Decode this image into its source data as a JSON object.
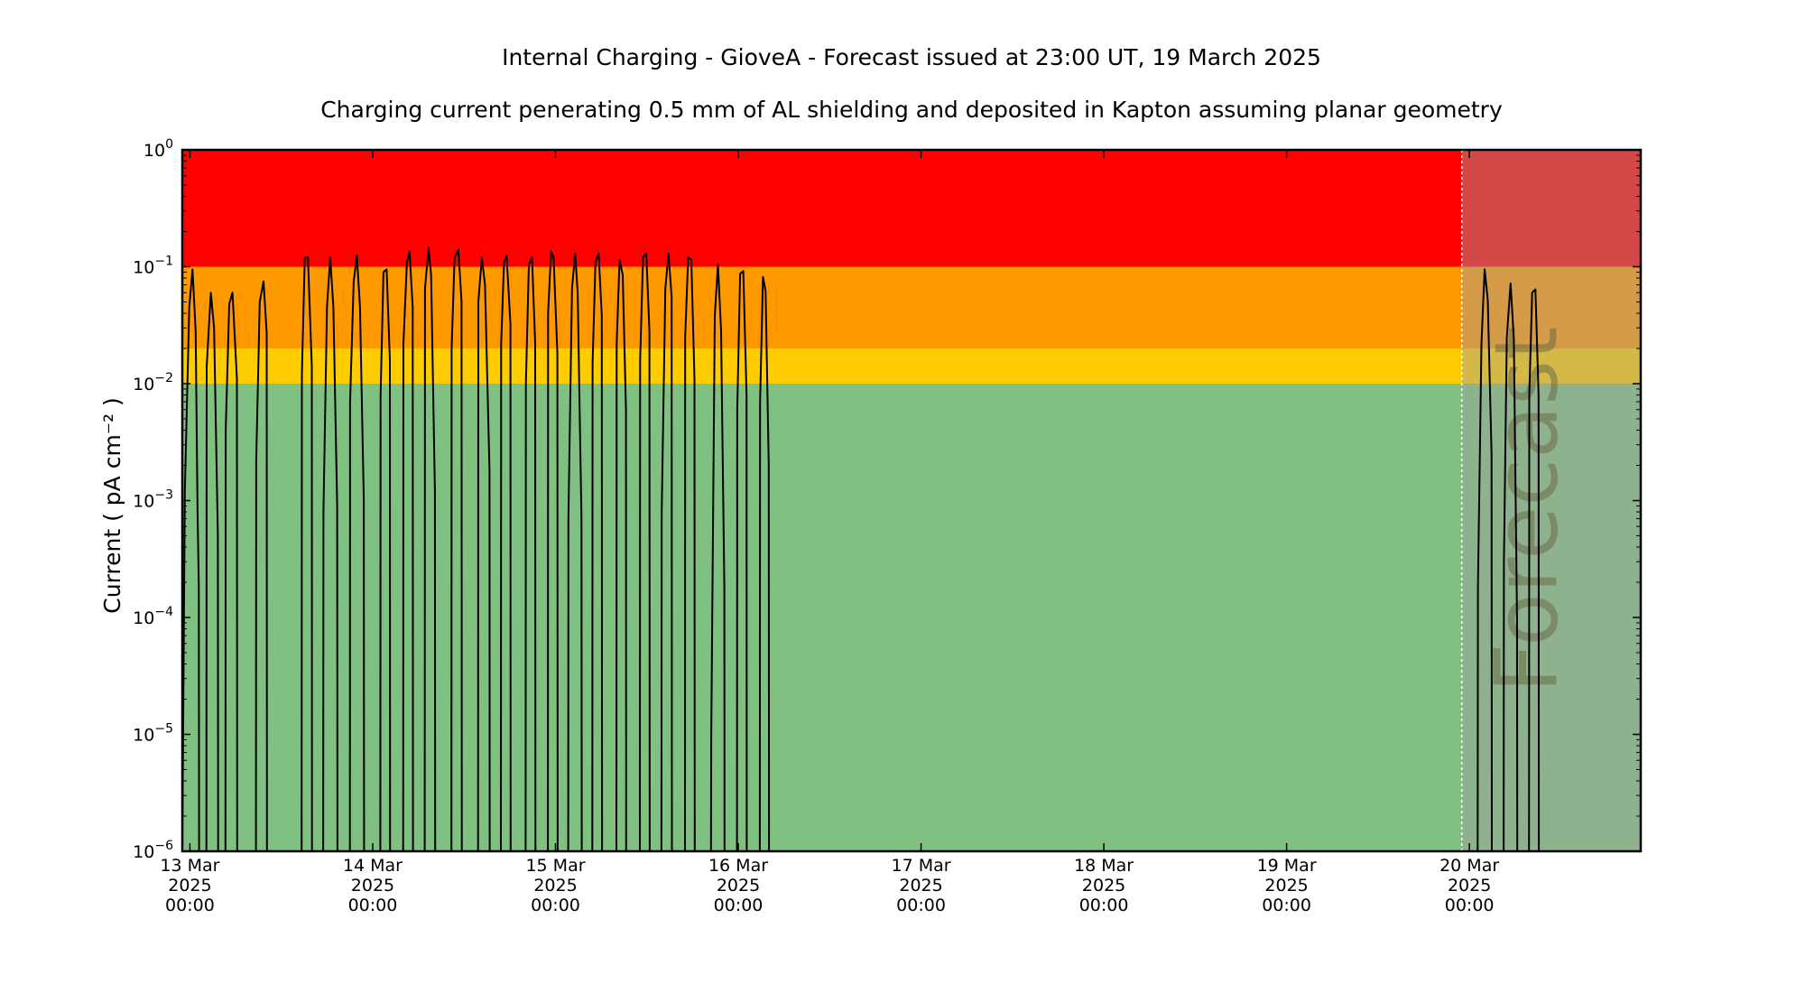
{
  "chart_data": {
    "type": "line",
    "title": "Internal Charging - GioveA - Forecast issued at 23:00 UT, 19 March 2025",
    "subtitle": "Charging current penerating 0.5 mm of AL shielding and deposited in Kapton assuming planar geometry",
    "xlabel": "",
    "ylabel": "Current ( pA cm⁻² )",
    "yscale": "log",
    "ylim": [
      1e-06,
      1
    ],
    "xlim": [
      "2025-03-12T23:00",
      "2025-03-20T22:30"
    ],
    "grid": false,
    "legend": "none",
    "x_ticks": [
      {
        "value": "2025-03-13T00:00",
        "lines": [
          "13 Mar",
          "2025",
          "00:00"
        ]
      },
      {
        "value": "2025-03-14T00:00",
        "lines": [
          "14 Mar",
          "2025",
          "00:00"
        ]
      },
      {
        "value": "2025-03-15T00:00",
        "lines": [
          "15 Mar",
          "2025",
          "00:00"
        ]
      },
      {
        "value": "2025-03-16T00:00",
        "lines": [
          "16 Mar",
          "2025",
          "00:00"
        ]
      },
      {
        "value": "2025-03-17T00:00",
        "lines": [
          "17 Mar",
          "2025",
          "00:00"
        ]
      },
      {
        "value": "2025-03-18T00:00",
        "lines": [
          "18 Mar",
          "2025",
          "00:00"
        ]
      },
      {
        "value": "2025-03-19T00:00",
        "lines": [
          "19 Mar",
          "2025",
          "00:00"
        ]
      },
      {
        "value": "2025-03-20T00:00",
        "lines": [
          "20 Mar",
          "2025",
          "00:00"
        ]
      }
    ],
    "y_ticks": [
      {
        "value": 1e-06,
        "base": "10",
        "exp": "−6"
      },
      {
        "value": 1e-05,
        "base": "10",
        "exp": "−5"
      },
      {
        "value": 0.0001,
        "base": "10",
        "exp": "−4"
      },
      {
        "value": 0.001,
        "base": "10",
        "exp": "−3"
      },
      {
        "value": 0.01,
        "base": "10",
        "exp": "−2"
      },
      {
        "value": 0.1,
        "base": "10",
        "exp": "−1"
      },
      {
        "value": 1,
        "base": "10",
        "exp": "0"
      }
    ],
    "bands": [
      {
        "from": 1e-06,
        "to": 0.01,
        "color": "#80c080"
      },
      {
        "from": 0.01,
        "to": 0.02,
        "color": "#ffcc00"
      },
      {
        "from": 0.02,
        "to": 0.1,
        "color": "#ff9900"
      },
      {
        "from": 0.1,
        "to": 1,
        "color": "#ff0000"
      }
    ],
    "forecast": {
      "start": "2025-03-19T23:00",
      "label": "Forecast",
      "overlay_color": "#a0a0a0",
      "overlay_opacity": 0.45,
      "divider_color": "#ffffff"
    },
    "line_color": "#000000",
    "series": [
      {
        "points": [
          [
            "2025-03-12T23:00",
            1e-06
          ],
          [
            "2025-03-12T23:20",
            0.0012
          ],
          [
            "2025-03-12T23:55",
            0.045
          ],
          [
            "2025-03-13T00:20",
            0.095
          ],
          [
            "2025-03-13T00:45",
            0.028
          ],
          [
            "2025-03-13T01:00",
            0.0008
          ],
          [
            "2025-03-13T01:10",
            0.00018
          ],
          [
            "2025-03-13T01:12",
            1e-06
          ],
          [
            "2025-03-13T02:10",
            1e-06
          ],
          [
            "2025-03-13T02:12",
            0.014
          ],
          [
            "2025-03-13T02:45",
            0.06
          ],
          [
            "2025-03-13T03:10",
            0.03
          ],
          [
            "2025-03-13T03:40",
            0.0005
          ],
          [
            "2025-03-13T03:42",
            1e-06
          ],
          [
            "2025-03-13T04:40",
            1e-06
          ],
          [
            "2025-03-13T04:42",
            0.004
          ],
          [
            "2025-03-13T05:10",
            0.048
          ],
          [
            "2025-03-13T05:35",
            0.06
          ],
          [
            "2025-03-13T06:10",
            0.011
          ],
          [
            "2025-03-13T06:12",
            1e-06
          ],
          [
            "2025-03-13T08:40",
            1e-06
          ],
          [
            "2025-03-13T08:42",
            0.0022
          ],
          [
            "2025-03-13T09:10",
            0.05
          ],
          [
            "2025-03-13T09:40",
            0.075
          ],
          [
            "2025-03-13T10:05",
            0.027
          ],
          [
            "2025-03-13T10:07",
            1e-06
          ],
          [
            "2025-03-13T14:40",
            1e-06
          ],
          [
            "2025-03-13T14:42",
            0.012
          ],
          [
            "2025-03-13T15:05",
            0.12
          ],
          [
            "2025-03-13T15:30",
            0.12
          ],
          [
            "2025-03-13T16:00",
            0.014
          ],
          [
            "2025-03-13T16:02",
            1e-06
          ],
          [
            "2025-03-13T17:30",
            1e-06
          ],
          [
            "2025-03-13T17:32",
            0.0008
          ],
          [
            "2025-03-13T18:00",
            0.045
          ],
          [
            "2025-03-13T18:25",
            0.12
          ],
          [
            "2025-03-13T18:50",
            0.045
          ],
          [
            "2025-03-13T19:20",
            0.0009
          ],
          [
            "2025-03-13T19:22",
            1e-06
          ],
          [
            "2025-03-13T21:00",
            1e-06
          ],
          [
            "2025-03-13T21:02",
            0.007
          ],
          [
            "2025-03-13T21:30",
            0.075
          ],
          [
            "2025-03-13T21:55",
            0.125
          ],
          [
            "2025-03-13T22:20",
            0.045
          ],
          [
            "2025-03-13T22:50",
            0.001
          ],
          [
            "2025-03-13T22:52",
            1e-06
          ],
          [
            "2025-03-14T01:00",
            1e-06
          ],
          [
            "2025-03-14T01:02",
            0.008
          ],
          [
            "2025-03-14T01:25",
            0.09
          ],
          [
            "2025-03-14T01:50",
            0.095
          ],
          [
            "2025-03-14T02:15",
            0.016
          ],
          [
            "2025-03-14T02:17",
            1e-06
          ],
          [
            "2025-03-14T04:00",
            1e-06
          ],
          [
            "2025-03-14T04:02",
            0.022
          ],
          [
            "2025-03-14T04:30",
            0.11
          ],
          [
            "2025-03-14T04:50",
            0.135
          ],
          [
            "2025-03-14T05:15",
            0.045
          ],
          [
            "2025-03-14T05:17",
            1e-06
          ],
          [
            "2025-03-14T06:50",
            1e-06
          ],
          [
            "2025-03-14T06:52",
            0.065
          ],
          [
            "2025-03-14T07:20",
            0.145
          ],
          [
            "2025-03-14T07:40",
            0.085
          ],
          [
            "2025-03-14T08:10",
            0.0012
          ],
          [
            "2025-03-14T08:12",
            1e-06
          ],
          [
            "2025-03-14T10:20",
            1e-06
          ],
          [
            "2025-03-14T10:22",
            0.02
          ],
          [
            "2025-03-14T10:45",
            0.12
          ],
          [
            "2025-03-14T11:15",
            0.14
          ],
          [
            "2025-03-14T11:40",
            0.05
          ],
          [
            "2025-03-14T11:42",
            1e-06
          ],
          [
            "2025-03-14T13:50",
            1e-06
          ],
          [
            "2025-03-14T13:52",
            0.05
          ],
          [
            "2025-03-14T14:20",
            0.12
          ],
          [
            "2025-03-14T14:45",
            0.07
          ],
          [
            "2025-03-14T15:20",
            0.0018
          ],
          [
            "2025-03-14T15:22",
            1e-06
          ],
          [
            "2025-03-14T16:50",
            1e-06
          ],
          [
            "2025-03-14T16:52",
            0.022
          ],
          [
            "2025-03-14T17:15",
            0.11
          ],
          [
            "2025-03-14T17:35",
            0.125
          ],
          [
            "2025-03-14T18:05",
            0.032
          ],
          [
            "2025-03-14T18:07",
            1e-06
          ],
          [
            "2025-03-14T20:05",
            1e-06
          ],
          [
            "2025-03-14T20:07",
            0.01
          ],
          [
            "2025-03-14T20:30",
            0.105
          ],
          [
            "2025-03-14T20:55",
            0.12
          ],
          [
            "2025-03-14T21:20",
            0.022
          ],
          [
            "2025-03-14T21:22",
            1e-06
          ],
          [
            "2025-03-14T23:00",
            1e-06
          ],
          [
            "2025-03-14T23:02",
            0.04
          ],
          [
            "2025-03-14T23:25",
            0.135
          ],
          [
            "2025-03-14T23:45",
            0.12
          ],
          [
            "2025-03-15T00:15",
            0.018
          ],
          [
            "2025-03-15T00:17",
            1e-06
          ],
          [
            "2025-03-15T01:40",
            1e-06
          ],
          [
            "2025-03-15T01:42",
            0.0007
          ],
          [
            "2025-03-15T02:10",
            0.065
          ],
          [
            "2025-03-15T02:35",
            0.13
          ],
          [
            "2025-03-15T02:55",
            0.06
          ],
          [
            "2025-03-15T03:25",
            0.0007
          ],
          [
            "2025-03-15T03:27",
            1e-06
          ],
          [
            "2025-03-15T04:50",
            1e-06
          ],
          [
            "2025-03-15T04:52",
            0.015
          ],
          [
            "2025-03-15T05:15",
            0.11
          ],
          [
            "2025-03-15T05:40",
            0.13
          ],
          [
            "2025-03-15T06:05",
            0.038
          ],
          [
            "2025-03-15T06:07",
            1e-06
          ],
          [
            "2025-03-15T08:00",
            1e-06
          ],
          [
            "2025-03-15T08:02",
            0.022
          ],
          [
            "2025-03-15T08:25",
            0.115
          ],
          [
            "2025-03-15T08:50",
            0.085
          ],
          [
            "2025-03-15T09:15",
            0.006
          ],
          [
            "2025-03-15T09:17",
            1e-06
          ],
          [
            "2025-03-15T11:05",
            1e-06
          ],
          [
            "2025-03-15T11:07",
            0.016
          ],
          [
            "2025-03-15T11:30",
            0.12
          ],
          [
            "2025-03-15T11:55",
            0.13
          ],
          [
            "2025-03-15T12:20",
            0.028
          ],
          [
            "2025-03-15T12:22",
            1e-06
          ],
          [
            "2025-03-15T13:55",
            1e-06
          ],
          [
            "2025-03-15T13:57",
            0.0008
          ],
          [
            "2025-03-15T14:25",
            0.065
          ],
          [
            "2025-03-15T14:50",
            0.13
          ],
          [
            "2025-03-15T15:15",
            0.055
          ],
          [
            "2025-03-15T15:17",
            1e-06
          ],
          [
            "2025-03-15T17:00",
            1e-06
          ],
          [
            "2025-03-15T17:02",
            0.025
          ],
          [
            "2025-03-15T17:25",
            0.12
          ],
          [
            "2025-03-15T17:50",
            0.115
          ],
          [
            "2025-03-15T18:15",
            0.011
          ],
          [
            "2025-03-15T18:17",
            1e-06
          ],
          [
            "2025-03-15T20:25",
            1e-06
          ],
          [
            "2025-03-15T20:27",
            1e-05
          ],
          [
            "2025-03-15T20:55",
            0.038
          ],
          [
            "2025-03-15T21:20",
            0.105
          ],
          [
            "2025-03-15T21:45",
            0.028
          ],
          [
            "2025-03-15T22:10",
            0.00018
          ],
          [
            "2025-03-15T22:12",
            1e-06
          ],
          [
            "2025-03-15T23:50",
            1e-06
          ],
          [
            "2025-03-15T23:52",
            0.006
          ],
          [
            "2025-03-16T00:15",
            0.087
          ],
          [
            "2025-03-16T00:40",
            0.092
          ],
          [
            "2025-03-16T01:05",
            0.008
          ],
          [
            "2025-03-16T01:07",
            1e-06
          ],
          [
            "2025-03-16T02:50",
            1e-06
          ],
          [
            "2025-03-16T02:52",
            0.007
          ],
          [
            "2025-03-16T03:15",
            0.082
          ],
          [
            "2025-03-16T03:35",
            0.062
          ],
          [
            "2025-03-16T04:00",
            0.002
          ],
          [
            "2025-03-16T04:02",
            1e-06
          ]
        ]
      },
      {
        "name": "",
        "forecast": true,
        "points": [
          [
            "2025-03-20T01:05",
            1e-06
          ],
          [
            "2025-03-20T01:07",
            0.00018
          ],
          [
            "2025-03-20T01:35",
            0.022
          ],
          [
            "2025-03-20T02:00",
            0.095
          ],
          [
            "2025-03-20T02:25",
            0.052
          ],
          [
            "2025-03-20T02:55",
            0.0025
          ],
          [
            "2025-03-20T02:57",
            1e-06
          ],
          [
            "2025-03-20T04:30",
            1e-06
          ],
          [
            "2025-03-20T04:32",
            0.0003
          ],
          [
            "2025-03-20T04:55",
            0.025
          ],
          [
            "2025-03-20T05:25",
            0.072
          ],
          [
            "2025-03-20T05:50",
            0.024
          ],
          [
            "2025-03-20T06:15",
            0.0001
          ],
          [
            "2025-03-20T06:17",
            1e-06
          ],
          [
            "2025-03-20T07:50",
            1e-06
          ],
          [
            "2025-03-20T07:52",
            0.008
          ],
          [
            "2025-03-20T08:15",
            0.06
          ],
          [
            "2025-03-20T08:40",
            0.064
          ],
          [
            "2025-03-20T09:05",
            0.008
          ],
          [
            "2025-03-20T09:07",
            1e-06
          ],
          [
            "2025-03-20T22:30",
            1e-06
          ]
        ]
      }
    ]
  }
}
